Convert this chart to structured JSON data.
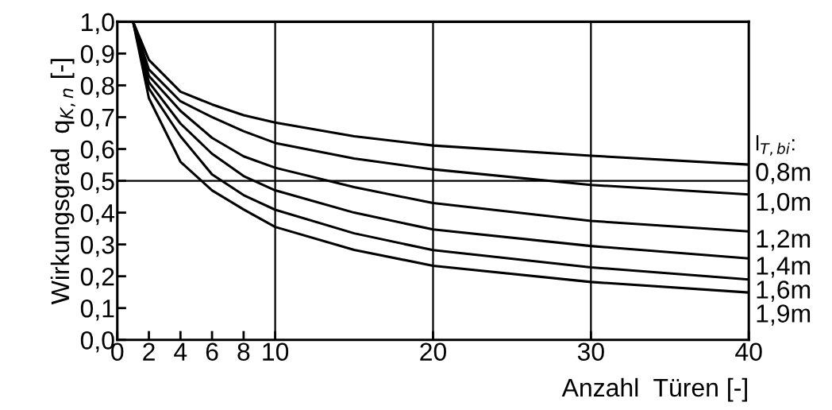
{
  "chart_data": {
    "type": "line",
    "ylabel": "Wirkungsgrad  q$_{K,n}$ [-]",
    "xlabel": "Anzahl  Türen [-]",
    "legend_title": "l$_{T,bi}$:",
    "x": [
      1,
      2,
      4,
      6,
      8,
      10,
      15,
      20,
      30,
      40
    ],
    "series": [
      {
        "name": "0,8m",
        "color": "#000000",
        "values": [
          1.0,
          0.88,
          0.78,
          0.74,
          0.706,
          0.683,
          0.64,
          0.611,
          0.579,
          0.551
        ]
      },
      {
        "name": "1,0m",
        "color": "#000000",
        "values": [
          1.0,
          0.85,
          0.75,
          0.7,
          0.656,
          0.619,
          0.57,
          0.536,
          0.487,
          0.457
        ]
      },
      {
        "name": "1,2m",
        "color": "#000000",
        "values": [
          1.0,
          0.83,
          0.72,
          0.635,
          0.577,
          0.541,
          0.48,
          0.43,
          0.374,
          0.341
        ]
      },
      {
        "name": "1,4m",
        "color": "#000000",
        "values": [
          1.0,
          0.81,
          0.68,
          0.585,
          0.515,
          0.47,
          0.4,
          0.347,
          0.295,
          0.256
        ]
      },
      {
        "name": "1,6m",
        "color": "#000000",
        "values": [
          1.0,
          0.79,
          0.64,
          0.52,
          0.455,
          0.409,
          0.335,
          0.282,
          0.228,
          0.19
        ]
      },
      {
        "name": "1,9m",
        "color": "#000000",
        "values": [
          1.0,
          0.76,
          0.56,
          0.47,
          0.41,
          0.355,
          0.283,
          0.233,
          0.182,
          0.149
        ]
      }
    ],
    "xlim": [
      0,
      40
    ],
    "xticks": [
      0,
      2,
      4,
      6,
      8,
      10,
      20,
      30,
      40
    ],
    "ylim": [
      0,
      1
    ],
    "yticks": [
      {
        "value": 0,
        "label": "0,0"
      },
      {
        "value": 0.1,
        "label": "0,1"
      },
      {
        "value": 0.2,
        "label": "0,2"
      },
      {
        "value": 0.3,
        "label": "0,3"
      },
      {
        "value": 0.4,
        "label": "0,4"
      },
      {
        "value": 0.5,
        "label": "0,5"
      },
      {
        "value": 0.6,
        "label": "0,6"
      },
      {
        "value": 0.7,
        "label": "0,7"
      },
      {
        "value": 0.8,
        "label": "0,8"
      },
      {
        "value": 0.9,
        "label": "0,9"
      },
      {
        "value": 1.0,
        "label": "1,0"
      }
    ],
    "ref_lines": [
      {
        "axis": "x",
        "value": 10
      },
      {
        "axis": "x",
        "value": 20
      },
      {
        "axis": "x",
        "value": 30
      },
      {
        "axis": "y",
        "value": 0.5
      }
    ],
    "grid": false,
    "legend": "right",
    "marker": "none",
    "line_style": "solid"
  }
}
